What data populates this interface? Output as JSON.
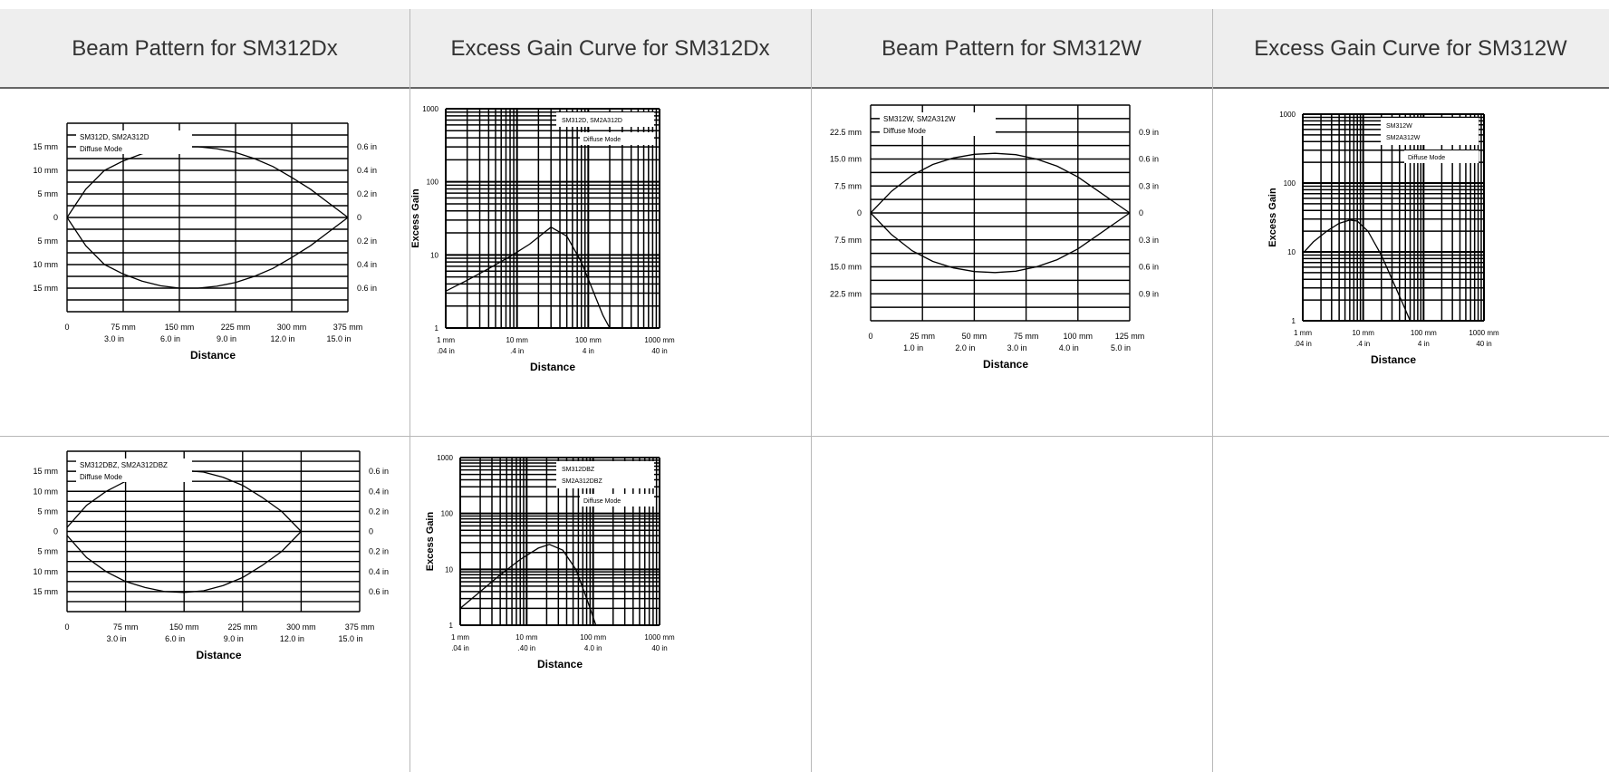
{
  "headers": [
    "Beam Pattern for SM312Dx",
    "Excess Gain Curve for SM312Dx",
    "Beam Pattern for SM312W",
    "Excess Gain Curve for SM312W"
  ],
  "chart_data": [
    {
      "type": "line",
      "label": "SM312D, SM2A312D",
      "mode": "Diffuse Mode",
      "xlabel": "Distance",
      "x_ticks_mm": [
        "0",
        "75 mm",
        "150 mm",
        "225 mm",
        "300 mm",
        "375 mm"
      ],
      "x_ticks_in": [
        "3.0 in",
        "6.0 in",
        "9.0 in",
        "12.0 in",
        "15.0 in"
      ],
      "y_ticks_left": [
        "15 mm",
        "10 mm",
        "5 mm",
        "0",
        "5 mm",
        "10 mm",
        "15 mm"
      ],
      "y_ticks_right": [
        "0.6 in",
        "0.4 in",
        "0.2 in",
        "0",
        "0.2 in",
        "0.4 in",
        "0.6 in"
      ],
      "xlim": [
        0,
        375
      ],
      "ylim": [
        -20,
        20
      ],
      "series": [
        {
          "x": [
            0,
            25,
            50,
            75,
            100,
            125,
            150,
            175,
            200,
            225,
            250,
            275,
            300,
            325,
            350,
            375
          ],
          "y": [
            0,
            6,
            10,
            12,
            13.5,
            14.5,
            15,
            15,
            14.6,
            13.8,
            12.5,
            10.8,
            8.5,
            6,
            3,
            0
          ]
        },
        {
          "x": [
            0,
            25,
            50,
            75,
            100,
            125,
            150,
            175,
            200,
            225,
            250,
            275,
            300,
            325,
            350,
            375
          ],
          "y": [
            0,
            -6,
            -10,
            -12,
            -13.5,
            -14.5,
            -15,
            -15,
            -14.6,
            -13.8,
            -12.5,
            -10.8,
            -8.5,
            -6,
            -3,
            0
          ]
        }
      ]
    },
    {
      "type": "line",
      "scale": "log-log",
      "label": "SM312D, SM2A312D",
      "mode": "Diffuse Mode",
      "xlabel": "Distance",
      "ylabel": "Excess Gain",
      "x_ticks_mm": [
        "1 mm",
        "10 mm",
        "100 mm",
        "1000 mm"
      ],
      "x_ticks_in": [
        ".04 in",
        ".4 in",
        "4 in",
        "40 in"
      ],
      "y_ticks": [
        "1",
        "10",
        "100",
        "1000"
      ],
      "xlim": [
        1,
        1000
      ],
      "ylim": [
        1,
        1000
      ],
      "series": [
        {
          "x": [
            1,
            2,
            4,
            8,
            15,
            30,
            50,
            80,
            120,
            160,
            200
          ],
          "y": [
            3.2,
            4.5,
            6.5,
            9.5,
            14,
            24,
            18,
            8,
            3,
            1.5,
            1
          ]
        }
      ]
    },
    {
      "type": "line",
      "label": "SM312W, SM2A312W",
      "mode": "Diffuse Mode",
      "xlabel": "Distance",
      "x_ticks_mm": [
        "0",
        "25 mm",
        "50 mm",
        "75 mm",
        "100 mm",
        "125 mm"
      ],
      "x_ticks_in": [
        "1.0 in",
        "2.0 in",
        "3.0 in",
        "4.0 in",
        "5.0 in"
      ],
      "y_ticks_left": [
        "22.5 mm",
        "15.0 mm",
        "7.5 mm",
        "0",
        "7.5 mm",
        "15.0 mm",
        "22.5 mm"
      ],
      "y_ticks_right": [
        "0.9 in",
        "0.6 in",
        "0.3 in",
        "0",
        "0.3 in",
        "0.6 in",
        "0.9 in"
      ],
      "xlim": [
        0,
        125
      ],
      "ylim": [
        -30,
        30
      ],
      "series": [
        {
          "x": [
            0,
            10,
            20,
            30,
            40,
            50,
            60,
            70,
            80,
            90,
            100,
            110,
            120,
            125
          ],
          "y": [
            0,
            6,
            10.5,
            13.5,
            15.3,
            16.3,
            16.6,
            16.2,
            15,
            13,
            10,
            6,
            2,
            0
          ]
        },
        {
          "x": [
            0,
            10,
            20,
            30,
            40,
            50,
            60,
            70,
            80,
            90,
            100,
            110,
            120,
            125
          ],
          "y": [
            0,
            -6,
            -10.5,
            -13.5,
            -15.3,
            -16.3,
            -16.6,
            -16.2,
            -15,
            -13,
            -10,
            -6,
            -2,
            0
          ]
        }
      ]
    },
    {
      "type": "line",
      "scale": "log-log",
      "label": "SM312W\nSM2A312W",
      "mode": "Diffuse Mode",
      "xlabel": "Distance",
      "ylabel": "Excess Gain",
      "x_ticks_mm": [
        "1 mm",
        "10 mm",
        "100 mm",
        "1000 mm"
      ],
      "x_ticks_in": [
        ".04 in",
        ".4 in",
        "4 in",
        "40 in"
      ],
      "y_ticks": [
        "1",
        "10",
        "100",
        "1000"
      ],
      "xlim": [
        1,
        1000
      ],
      "ylim": [
        1,
        1000
      ],
      "series": [
        {
          "x": [
            1,
            1.5,
            2.5,
            4,
            6,
            8,
            12,
            20,
            30,
            45,
            60
          ],
          "y": [
            9.5,
            14,
            20,
            26,
            29,
            28,
            20,
            9,
            4,
            1.8,
            1
          ]
        }
      ]
    },
    {
      "type": "line",
      "label": "SM312DBZ, SM2A312DBZ",
      "mode": "Diffuse Mode",
      "xlabel": "Distance",
      "x_ticks_mm": [
        "0",
        "75 mm",
        "150 mm",
        "225 mm",
        "300 mm",
        "375 mm"
      ],
      "x_ticks_in": [
        "3.0 in",
        "6.0 in",
        "9.0 in",
        "12.0 in",
        "15.0 in"
      ],
      "y_ticks_left": [
        "15 mm",
        "10 mm",
        "5 mm",
        "0",
        "5 mm",
        "10 mm",
        "15 mm"
      ],
      "y_ticks_right": [
        "0.6 in",
        "0.4 in",
        "0.2 in",
        "0",
        "0.2 in",
        "0.4 in",
        "0.6 in"
      ],
      "xlim": [
        0,
        375
      ],
      "ylim": [
        -20,
        20
      ],
      "series": [
        {
          "x": [
            0,
            25,
            50,
            75,
            100,
            125,
            150,
            175,
            200,
            225,
            250,
            275,
            300
          ],
          "y": [
            1,
            6.5,
            10,
            12.5,
            14,
            15,
            15.2,
            14.8,
            13.5,
            11.5,
            8.5,
            5,
            0
          ]
        },
        {
          "x": [
            0,
            25,
            50,
            75,
            100,
            125,
            150,
            175,
            200,
            225,
            250,
            275,
            300
          ],
          "y": [
            -1,
            -6.5,
            -10,
            -12.5,
            -14,
            -15,
            -15.2,
            -14.8,
            -13.5,
            -11.5,
            -8.5,
            -5,
            0
          ]
        }
      ]
    },
    {
      "type": "line",
      "scale": "log-log",
      "label": "SM312DBZ\nSM2A312DBZ",
      "mode": "Diffuse Mode",
      "xlabel": "Distance",
      "ylabel": "Excess Gain",
      "x_ticks_mm": [
        "1 mm",
        "10 mm",
        "100 mm",
        "1000 mm"
      ],
      "x_ticks_in": [
        ".04 in",
        ".40 in",
        "4.0 in",
        "40 in"
      ],
      "y_ticks": [
        "1",
        "10",
        "100",
        "1000"
      ],
      "xlim": [
        1,
        1000
      ],
      "ylim": [
        1,
        1000
      ],
      "series": [
        {
          "x": [
            1,
            2,
            4,
            8,
            15,
            22,
            35,
            55,
            80,
            110
          ],
          "y": [
            2,
            4,
            8,
            15,
            24,
            28,
            22,
            10,
            3,
            1
          ]
        }
      ]
    }
  ]
}
